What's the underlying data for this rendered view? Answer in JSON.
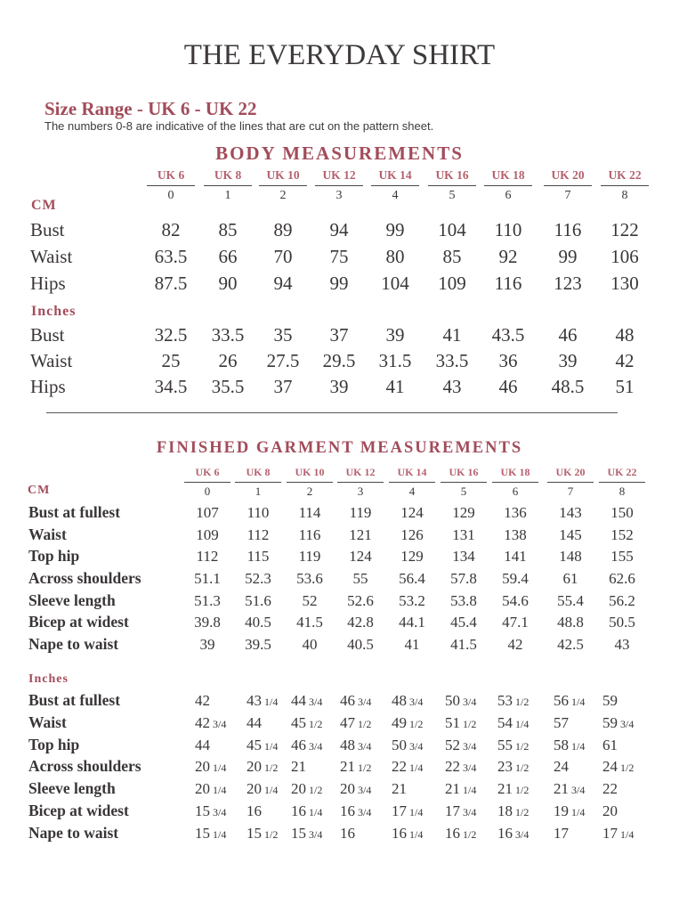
{
  "title": "THE EVERYDAY SHIRT",
  "size_range": "Size Range - UK 6 - UK 22",
  "note": "The numbers 0-8 are indicative of the lines that are cut on the pattern sheet.",
  "sizes": [
    "UK 6",
    "UK 8",
    "UK 10",
    "UK 12",
    "UK 14",
    "UK 16",
    "UK 18",
    "UK 20",
    "UK 22"
  ],
  "lines": [
    "0",
    "1",
    "2",
    "3",
    "4",
    "5",
    "6",
    "7",
    "8"
  ],
  "body": {
    "heading": "BODY MEASUREMENTS",
    "cm_label": "CM",
    "inches_label": "Inches",
    "cm": [
      {
        "label": "Bust",
        "values": [
          "82",
          "85",
          "89",
          "94",
          "99",
          "104",
          "110",
          "116",
          "122"
        ]
      },
      {
        "label": "Waist",
        "values": [
          "63.5",
          "66",
          "70",
          "75",
          "80",
          "85",
          "92",
          "99",
          "106"
        ]
      },
      {
        "label": "Hips",
        "values": [
          "87.5",
          "90",
          "94",
          "99",
          "104",
          "109",
          "116",
          "123",
          "130"
        ]
      }
    ],
    "inches": [
      {
        "label": "Bust",
        "values": [
          "32.5",
          "33.5",
          "35",
          "37",
          "39",
          "41",
          "43.5",
          "46",
          "48"
        ]
      },
      {
        "label": "Waist",
        "values": [
          "25",
          "26",
          "27.5",
          "29.5",
          "31.5",
          "33.5",
          "36",
          "39",
          "42"
        ]
      },
      {
        "label": "Hips",
        "values": [
          "34.5",
          "35.5",
          "37",
          "39",
          "41",
          "43",
          "46",
          "48.5",
          "51"
        ]
      }
    ]
  },
  "garment": {
    "heading": "FINISHED GARMENT  MEASUREMENTS",
    "cm_label": "CM",
    "inches_label": "Inches",
    "cm": [
      {
        "label": "Bust at fullest",
        "values": [
          "107",
          "110",
          "114",
          "119",
          "124",
          "129",
          "136",
          "143",
          "150"
        ]
      },
      {
        "label": "Waist",
        "values": [
          "109",
          "112",
          "116",
          "121",
          "126",
          "131",
          "138",
          "145",
          "152"
        ]
      },
      {
        "label": "Top hip",
        "values": [
          "112",
          "115",
          "119",
          "124",
          "129",
          "134",
          "141",
          "148",
          "155"
        ]
      },
      {
        "label": "Across shoulders",
        "values": [
          "51.1",
          "52.3",
          "53.6",
          "55",
          "56.4",
          "57.8",
          "59.4",
          "61",
          "62.6"
        ]
      },
      {
        "label": "Sleeve length",
        "values": [
          "51.3",
          "51.6",
          "52",
          "52.6",
          "53.2",
          "53.8",
          "54.6",
          "55.4",
          "56.2"
        ]
      },
      {
        "label": "Bicep at widest",
        "values": [
          "39.8",
          "40.5",
          "41.5",
          "42.8",
          "44.1",
          "45.4",
          "47.1",
          "48.8",
          "50.5"
        ]
      },
      {
        "label": "Nape to waist",
        "values": [
          "39",
          "39.5",
          "40",
          "40.5",
          "41",
          "41.5",
          "42",
          "42.5",
          "43"
        ]
      }
    ],
    "inches": [
      {
        "label": "Bust at fullest",
        "values": [
          "42",
          "43 1/4",
          "44 3/4",
          "46 3/4",
          "48 3/4",
          "50 3/4",
          "53 1/2",
          "56 1/4",
          "59"
        ]
      },
      {
        "label": "Waist",
        "values": [
          "42 3/4",
          "44",
          "45 1/2",
          "47 1/2",
          "49 1/2",
          "51 1/2",
          "54 1/4",
          "57",
          "59 3/4"
        ]
      },
      {
        "label": "Top hip",
        "values": [
          "44",
          "45 1/4",
          "46 3/4",
          "48 3/4",
          "50 3/4",
          "52 3/4",
          "55 1/2",
          "58 1/4",
          "61"
        ]
      },
      {
        "label": "Across shoulders",
        "values": [
          "20 1/4",
          "20 1/2",
          "21",
          "21 1/2",
          "22 1/4",
          "22 3/4",
          "23 1/2",
          "24",
          "24 1/2"
        ]
      },
      {
        "label": "Sleeve length",
        "values": [
          "20 1/4",
          "20 1/4",
          "20 1/2",
          "20 3/4",
          "21",
          "21 1/4",
          "21 1/2",
          "21 3/4",
          "22"
        ]
      },
      {
        "label": "Bicep at widest",
        "values": [
          "15 3/4",
          "16",
          "16 1/4",
          "16 3/4",
          "17 1/4",
          "17 3/4",
          "18 1/2",
          "19 1/4",
          "20"
        ]
      },
      {
        "label": "Nape to waist",
        "values": [
          "15 1/4",
          "15 1/2",
          "15 3/4",
          "16",
          "16 1/4",
          "16 1/2",
          "16 3/4",
          "17",
          "17 1/4"
        ]
      }
    ]
  }
}
